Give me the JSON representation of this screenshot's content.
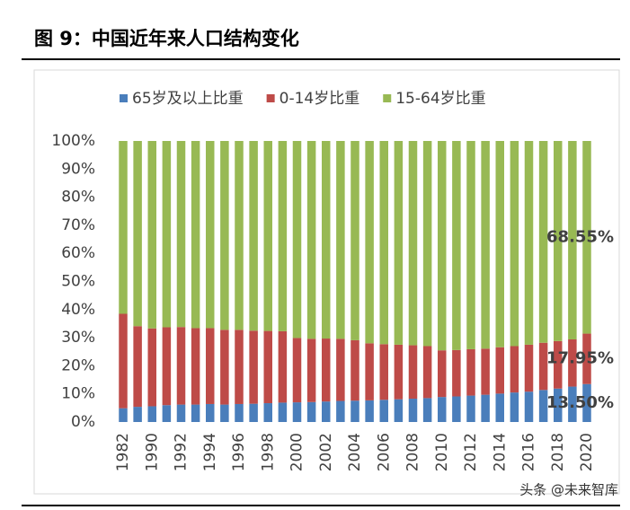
{
  "chart_data": {
    "type": "stacked_bar_percent",
    "title": "图 9：中国近年来人口结构变化",
    "watermark": "头条 @未来智库",
    "categories": [
      "1982",
      null,
      "1990",
      null,
      "1992",
      null,
      "1994",
      null,
      "1996",
      null,
      "1998",
      null,
      "2000",
      null,
      "2002",
      null,
      "2004",
      null,
      "2006",
      null,
      "2008",
      null,
      "2010",
      null,
      "2012",
      null,
      "2014",
      null,
      "2016",
      null,
      "2018",
      null,
      "2020"
    ],
    "series": [
      {
        "name": "65岁及以上比重",
        "color": "#4a7ebb",
        "values": [
          4.9,
          5.4,
          5.6,
          6.0,
          6.2,
          6.2,
          6.4,
          6.2,
          6.4,
          6.5,
          6.7,
          6.9,
          7.0,
          7.1,
          7.3,
          7.5,
          7.6,
          7.7,
          7.9,
          8.1,
          8.3,
          8.5,
          8.9,
          9.1,
          9.4,
          9.7,
          10.1,
          10.5,
          10.8,
          11.4,
          11.9,
          12.6,
          13.5
        ],
        "value_labels": [
          null,
          null,
          null,
          null,
          null,
          null,
          null,
          null,
          null,
          null,
          null,
          null,
          null,
          null,
          null,
          null,
          null,
          null,
          null,
          null,
          null,
          null,
          null,
          null,
          null,
          null,
          null,
          null,
          null,
          null,
          null,
          null,
          "13.50%"
        ]
      },
      {
        "name": "0-14岁比重",
        "color": "#be4b48",
        "values": [
          33.6,
          28.7,
          27.7,
          27.7,
          27.6,
          27.2,
          27.0,
          26.6,
          26.4,
          26.0,
          25.7,
          25.4,
          22.9,
          22.5,
          22.4,
          22.1,
          21.5,
          20.3,
          19.8,
          19.4,
          19.0,
          18.5,
          16.6,
          16.5,
          16.5,
          16.4,
          16.5,
          16.5,
          16.7,
          16.8,
          16.9,
          16.8,
          17.95
        ],
        "value_labels": [
          null,
          null,
          null,
          null,
          null,
          null,
          null,
          null,
          null,
          null,
          null,
          null,
          null,
          null,
          null,
          null,
          null,
          null,
          null,
          null,
          null,
          null,
          null,
          null,
          null,
          null,
          null,
          null,
          null,
          null,
          null,
          null,
          "17.95%"
        ]
      },
      {
        "name": "15-64岁比重",
        "color": "#98b954",
        "values": [
          61.5,
          65.9,
          66.7,
          66.3,
          66.2,
          66.6,
          66.6,
          67.2,
          67.2,
          67.5,
          67.6,
          67.7,
          70.1,
          70.4,
          70.3,
          70.4,
          70.9,
          72.0,
          72.3,
          72.5,
          72.7,
          73.0,
          74.5,
          74.4,
          74.1,
          73.9,
          73.4,
          73.0,
          72.5,
          71.8,
          71.2,
          70.6,
          68.55
        ],
        "value_labels": [
          null,
          null,
          null,
          null,
          null,
          null,
          null,
          null,
          null,
          null,
          null,
          null,
          null,
          null,
          null,
          null,
          null,
          null,
          null,
          null,
          null,
          null,
          null,
          null,
          null,
          null,
          null,
          null,
          null,
          null,
          null,
          null,
          "68.55%"
        ]
      }
    ],
    "ylim": [
      0,
      100
    ],
    "yticks": [
      {
        "value": 0,
        "label": "0%"
      },
      {
        "value": 10,
        "label": "10%"
      },
      {
        "value": 20,
        "label": "20%"
      },
      {
        "value": 30,
        "label": "30%"
      },
      {
        "value": 40,
        "label": "40%"
      },
      {
        "value": 50,
        "label": "50%"
      },
      {
        "value": 60,
        "label": "60%"
      },
      {
        "value": 70,
        "label": "70%"
      },
      {
        "value": 80,
        "label": "80%"
      },
      {
        "value": 90,
        "label": "90%"
      },
      {
        "value": 100,
        "label": "100%"
      }
    ],
    "legend": "top"
  }
}
